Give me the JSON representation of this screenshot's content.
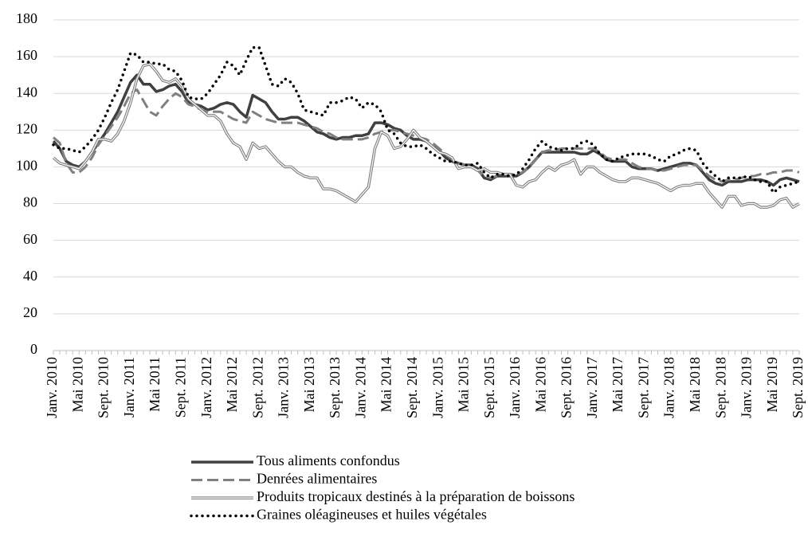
{
  "chart_data": {
    "type": "line",
    "categories": [
      "Janv. 2010",
      null,
      null,
      null,
      "Mai 2010",
      null,
      null,
      null,
      "Sept. 2010",
      null,
      null,
      null,
      "Janv. 2011",
      null,
      null,
      null,
      "Mai 2011",
      null,
      null,
      null,
      "Sept. 2011",
      null,
      null,
      null,
      "Janv. 2012",
      null,
      null,
      null,
      "Mai 2012",
      null,
      null,
      null,
      "Sept. 2012",
      null,
      null,
      null,
      "Janv. 2013",
      null,
      null,
      null,
      "Mai 2013",
      null,
      null,
      null,
      "Sept. 2013",
      null,
      null,
      null,
      "Janv. 2014",
      null,
      null,
      null,
      "Mai 2014",
      null,
      null,
      null,
      "Sept. 2014",
      null,
      null,
      null,
      "Janv. 2015",
      null,
      null,
      null,
      "Mai 2015",
      null,
      null,
      null,
      "Sept. 2015",
      null,
      null,
      null,
      "Janv. 2016",
      null,
      null,
      null,
      "Mai 2016",
      null,
      null,
      null,
      "Sept. 2016",
      null,
      null,
      null,
      "Janv. 2017",
      null,
      null,
      null,
      "Mai 2017",
      null,
      null,
      null,
      "Sept. 2017",
      null,
      null,
      null,
      "Janv. 2018",
      null,
      null,
      null,
      "Mai 2018",
      null,
      null,
      null,
      "Sept. 2018",
      null,
      null,
      null,
      "Janv. 2019",
      null,
      null,
      null,
      "Mai 2019",
      null,
      null,
      null,
      "Sept. 2019"
    ],
    "series": [
      {
        "name": "Tous aliments confondus",
        "color": "#404040",
        "style": "solid",
        "values": [
          114,
          110,
          103,
          101,
          100,
          103,
          108,
          113,
          118,
          124,
          130,
          138,
          146,
          150,
          145,
          145,
          141,
          142,
          144,
          145,
          141,
          135,
          134,
          133,
          131,
          132,
          134,
          135,
          134,
          130,
          127,
          139,
          137,
          135,
          130,
          126,
          126,
          127,
          127,
          125,
          122,
          119,
          118,
          116,
          115,
          116,
          116,
          117,
          117,
          118,
          124,
          124,
          123,
          121,
          120,
          117,
          115,
          115,
          114,
          111,
          109,
          105,
          103,
          102,
          101,
          101,
          99,
          94,
          93,
          95,
          95,
          95,
          95,
          97,
          100,
          104,
          108,
          108,
          108,
          108,
          108,
          108,
          107,
          107,
          109,
          107,
          104,
          103,
          103,
          103,
          100,
          99,
          99,
          99,
          98,
          99,
          100,
          101,
          102,
          102,
          101,
          97,
          93,
          91,
          90,
          92,
          92,
          92,
          93,
          93,
          93,
          92,
          90,
          93,
          94,
          93,
          92
        ]
      },
      {
        "name": "Denrées alimentaires",
        "color": "#808080",
        "style": "dashed",
        "values": [
          116,
          113,
          102,
          97,
          97,
          100,
          105,
          112,
          117,
          122,
          127,
          133,
          140,
          142,
          136,
          130,
          128,
          133,
          137,
          140,
          138,
          134,
          133,
          131,
          130,
          130,
          130,
          128,
          126,
          125,
          124,
          130,
          128,
          126,
          125,
          124,
          124,
          124,
          124,
          123,
          122,
          121,
          119,
          118,
          116,
          115,
          115,
          115,
          115,
          116,
          118,
          119,
          120,
          120,
          119,
          118,
          117,
          116,
          115,
          113,
          110,
          107,
          104,
          102,
          101,
          100,
          98,
          95,
          94,
          95,
          96,
          96,
          96,
          97,
          100,
          104,
          108,
          109,
          109,
          110,
          110,
          110,
          110,
          110,
          110,
          108,
          105,
          104,
          104,
          104,
          102,
          100,
          99,
          99,
          98,
          98,
          99,
          100,
          101,
          101,
          101,
          98,
          95,
          93,
          92,
          93,
          93,
          94,
          95,
          95,
          96,
          96,
          97,
          97,
          98,
          98,
          97
        ]
      },
      {
        "name": "Produits tropicaux destinés à la préparation de boissons",
        "color": "#808080",
        "style": "double",
        "values": [
          105,
          102,
          101,
          100,
          99,
          103,
          108,
          115,
          115,
          114,
          118,
          125,
          135,
          148,
          155,
          156,
          152,
          147,
          146,
          148,
          144,
          137,
          134,
          131,
          128,
          128,
          125,
          118,
          113,
          111,
          104,
          113,
          110,
          111,
          107,
          103,
          100,
          100,
          97,
          95,
          94,
          94,
          88,
          88,
          87,
          85,
          83,
          81,
          85,
          89,
          110,
          119,
          117,
          110,
          111,
          115,
          120,
          116,
          114,
          111,
          108,
          107,
          105,
          99,
          100,
          100,
          98,
          99,
          97,
          97,
          96,
          96,
          90,
          89,
          92,
          93,
          97,
          100,
          98,
          101,
          102,
          104,
          96,
          100,
          100,
          97,
          95,
          93,
          92,
          92,
          94,
          94,
          93,
          92,
          91,
          89,
          87,
          89,
          90,
          90,
          91,
          91,
          86,
          82,
          78,
          84,
          84,
          79,
          80,
          80,
          78,
          78,
          79,
          82,
          83,
          78,
          80
        ]
      },
      {
        "name": "Graines oléagineuses et huiles végétales",
        "color": "#000000",
        "style": "dotted",
        "values": [
          112,
          110,
          110,
          109,
          108,
          111,
          115,
          120,
          127,
          135,
          142,
          152,
          162,
          161,
          157,
          157,
          156,
          156,
          153,
          152,
          147,
          138,
          137,
          137,
          140,
          145,
          150,
          157,
          155,
          150,
          158,
          165,
          165,
          155,
          145,
          144,
          148,
          146,
          140,
          131,
          130,
          129,
          128,
          135,
          135,
          136,
          138,
          137,
          132,
          135,
          134,
          130,
          120,
          118,
          113,
          111,
          111,
          112,
          110,
          107,
          105,
          103,
          103,
          102,
          101,
          101,
          102,
          97,
          94,
          96,
          96,
          95,
          96,
          99,
          104,
          110,
          114,
          111,
          110,
          109,
          110,
          110,
          113,
          114,
          112,
          107,
          104,
          103,
          105,
          106,
          107,
          107,
          107,
          106,
          104,
          103,
          106,
          107,
          109,
          110,
          109,
          102,
          98,
          95,
          92,
          94,
          94,
          94,
          95,
          93,
          92,
          92,
          86,
          89,
          90,
          91,
          92
        ]
      }
    ],
    "ylim": [
      0,
      180
    ],
    "yticks": [
      0,
      20,
      40,
      60,
      80,
      100,
      120,
      140,
      160,
      180
    ],
    "grid": true
  }
}
